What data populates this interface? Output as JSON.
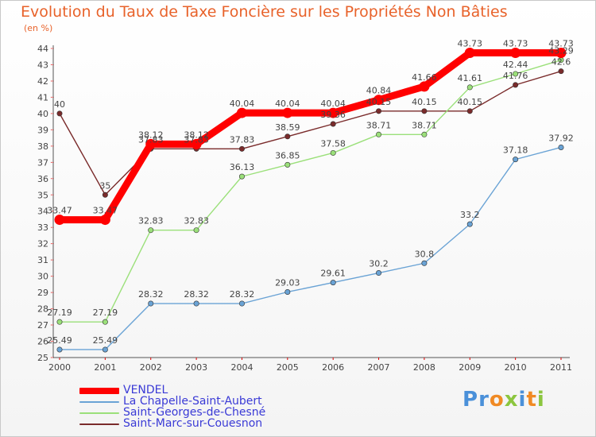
{
  "chart_data": {
    "type": "line",
    "title": "Evolution du Taux de Taxe Foncière sur les Propriétés Non Bâties",
    "ylabel": "(en %)",
    "xlabel": "",
    "x": [
      "2000",
      "2001",
      "2002",
      "2003",
      "2004",
      "2005",
      "2006",
      "2007",
      "2008",
      "2009",
      "2010",
      "2011"
    ],
    "ylim": [
      25,
      44
    ],
    "yticks": [
      "25",
      "26",
      "27",
      "28",
      "29",
      "30",
      "31",
      "32",
      "33",
      "34",
      "35",
      "36",
      "37",
      "38",
      "39",
      "40",
      "41",
      "42",
      "43",
      "44"
    ],
    "grid": false,
    "legend_position": "bottom-left",
    "series": [
      {
        "name": "VENDEL",
        "color": "#ff0000",
        "values": [
          33.47,
          33.47,
          38.12,
          38.12,
          40.04,
          40.04,
          40.04,
          40.84,
          41.66,
          43.73,
          43.73,
          43.73
        ],
        "labels": [
          "33.47",
          "33.47",
          "38.12",
          "38.12",
          "40.04",
          "40.04",
          "40.04",
          "40.84",
          "41.66",
          "43.73",
          "43.73",
          "43.73"
        ]
      },
      {
        "name": "La Chapelle-Saint-Aubert",
        "color": "#6aa3d5",
        "values": [
          25.49,
          25.49,
          28.32,
          28.32,
          28.32,
          29.03,
          29.61,
          30.2,
          30.8,
          33.2,
          37.18,
          37.92
        ],
        "labels": [
          "25.49",
          "25.49",
          "28.32",
          "28.32",
          "28.32",
          "29.03",
          "29.61",
          "30.2",
          "30.8",
          "33.2",
          "37.18",
          "37.92"
        ]
      },
      {
        "name": "Saint-Georges-de-Chesné",
        "color": "#9be07a",
        "values": [
          27.19,
          27.19,
          32.83,
          32.83,
          36.13,
          36.85,
          37.58,
          38.71,
          38.71,
          41.61,
          42.44,
          43.29
        ],
        "labels": [
          "27.19",
          "27.19",
          "32.83",
          "32.83",
          "36.13",
          "36.85",
          "37.58",
          "38.71",
          "38.71",
          "41.61",
          "42.44",
          "43.29"
        ]
      },
      {
        "name": "Saint-Marc-sur-Couesnon",
        "color": "#7a2b2b",
        "values": [
          40,
          35,
          37.83,
          37.83,
          37.83,
          38.59,
          39.36,
          40.15,
          40.15,
          40.15,
          41.76,
          42.6
        ],
        "labels": [
          "40",
          "35",
          "37.83",
          "37.83",
          "37.83",
          "38.59",
          "39.36",
          "40.15",
          "40.15",
          "40.15",
          "41.76",
          "42.6"
        ]
      }
    ]
  },
  "brand": {
    "letters": [
      "P",
      "r",
      "o",
      "x",
      "i",
      "t",
      "i"
    ],
    "colors": [
      "#4a90d9",
      "#4a90d9",
      "#f08a24",
      "#8cc63f",
      "#4a90d9",
      "#f08a24",
      "#8cc63f"
    ]
  }
}
